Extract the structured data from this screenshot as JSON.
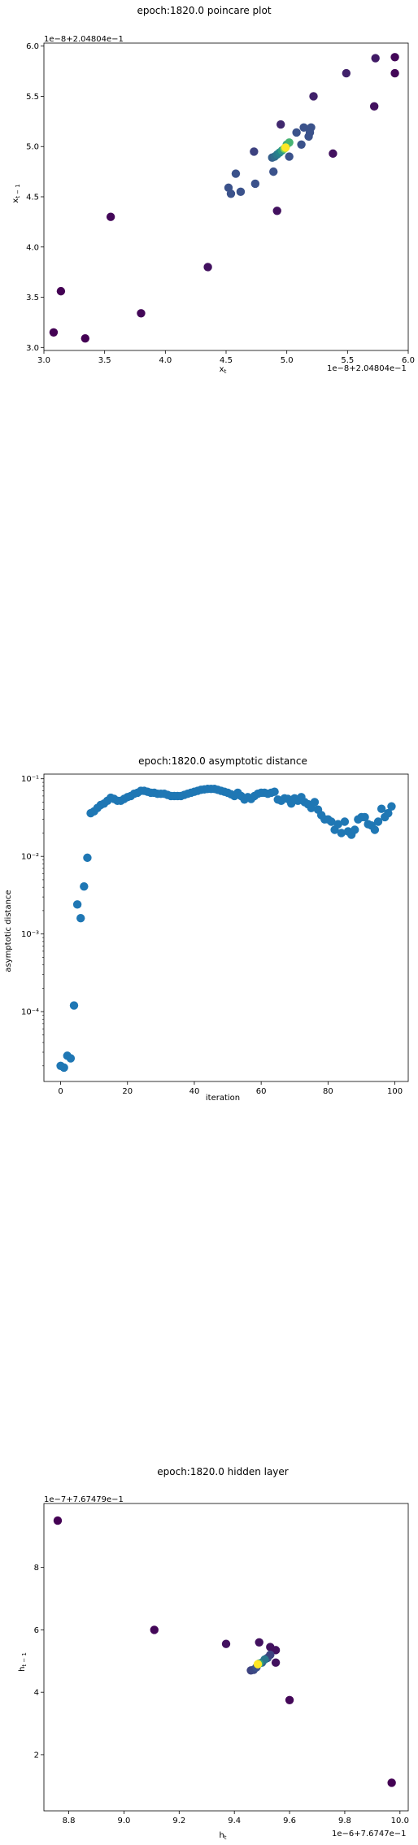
{
  "chart_data": [
    {
      "type": "scatter",
      "title": "epoch:1820.0 poincare plot",
      "xlabel": "x_t",
      "ylabel": "x_{t-1}",
      "x_offset_text": "1e−8+2.04804e−1",
      "y_offset_text": "1e−8+2.04804e−1",
      "xlim": [
        3.0,
        6.0
      ],
      "ylim": [
        2.97,
        6.03
      ],
      "xticks": [
        3.0,
        3.5,
        4.0,
        4.5,
        5.0,
        5.5,
        6.0
      ],
      "xtick_labels": [
        "3.0",
        "3.5",
        "4.0",
        "4.5",
        "5.0",
        "5.5",
        "6.0"
      ],
      "yticks": [
        3.0,
        3.5,
        4.0,
        4.5,
        5.0,
        5.5,
        6.0
      ],
      "ytick_labels": [
        "3.0",
        "3.5",
        "4.0",
        "4.5",
        "5.0",
        "5.5",
        "6.0"
      ],
      "colormap": "viridis",
      "points": [
        {
          "x": 3.08,
          "y": 3.15,
          "c": 0.0
        },
        {
          "x": 3.14,
          "y": 3.56,
          "c": 0.0
        },
        {
          "x": 3.34,
          "y": 3.09,
          "c": 0.0
        },
        {
          "x": 3.55,
          "y": 4.3,
          "c": 0.02
        },
        {
          "x": 3.8,
          "y": 3.34,
          "c": 0.02
        },
        {
          "x": 4.35,
          "y": 3.8,
          "c": 0.05
        },
        {
          "x": 4.92,
          "y": 4.36,
          "c": 0.05
        },
        {
          "x": 5.38,
          "y": 4.93,
          "c": 0.05
        },
        {
          "x": 5.72,
          "y": 5.4,
          "c": 0.05
        },
        {
          "x": 5.89,
          "y": 5.73,
          "c": 0.02
        },
        {
          "x": 5.89,
          "y": 5.89,
          "c": 0.02
        },
        {
          "x": 5.73,
          "y": 5.88,
          "c": 0.08
        },
        {
          "x": 5.49,
          "y": 5.73,
          "c": 0.1
        },
        {
          "x": 5.22,
          "y": 5.5,
          "c": 0.1
        },
        {
          "x": 4.95,
          "y": 5.22,
          "c": 0.12
        },
        {
          "x": 4.52,
          "y": 4.59,
          "c": 0.25
        },
        {
          "x": 4.54,
          "y": 4.53,
          "c": 0.25
        },
        {
          "x": 4.62,
          "y": 4.55,
          "c": 0.25
        },
        {
          "x": 4.58,
          "y": 4.73,
          "c": 0.25
        },
        {
          "x": 4.74,
          "y": 4.63,
          "c": 0.25
        },
        {
          "x": 4.73,
          "y": 4.95,
          "c": 0.2
        },
        {
          "x": 4.89,
          "y": 4.75,
          "c": 0.25
        },
        {
          "x": 5.02,
          "y": 4.9,
          "c": 0.25
        },
        {
          "x": 5.12,
          "y": 5.02,
          "c": 0.25
        },
        {
          "x": 5.08,
          "y": 5.14,
          "c": 0.25
        },
        {
          "x": 5.14,
          "y": 5.19,
          "c": 0.25
        },
        {
          "x": 5.2,
          "y": 5.19,
          "c": 0.25
        },
        {
          "x": 5.19,
          "y": 5.14,
          "c": 0.25
        },
        {
          "x": 5.18,
          "y": 5.1,
          "c": 0.25
        },
        {
          "x": 4.88,
          "y": 4.89,
          "c": 0.3
        },
        {
          "x": 4.9,
          "y": 4.9,
          "c": 0.35
        },
        {
          "x": 4.92,
          "y": 4.92,
          "c": 0.4
        },
        {
          "x": 4.94,
          "y": 4.94,
          "c": 0.45
        },
        {
          "x": 4.96,
          "y": 4.96,
          "c": 0.55
        },
        {
          "x": 5.0,
          "y": 5.02,
          "c": 0.6
        },
        {
          "x": 5.02,
          "y": 5.04,
          "c": 0.65
        },
        {
          "x": 4.98,
          "y": 4.98,
          "c": 0.8
        },
        {
          "x": 4.99,
          "y": 4.99,
          "c": 1.0
        }
      ]
    },
    {
      "type": "scatter",
      "title": "epoch:1820.0 asymptotic distance",
      "xlabel": "iteration",
      "ylabel": "asymptotic distance",
      "yscale": "log",
      "xlim": [
        -5,
        104
      ],
      "ylim_log10": [
        -4.9,
        -0.94
      ],
      "xticks": [
        0,
        20,
        40,
        60,
        80,
        100
      ],
      "xtick_labels": [
        "0",
        "20",
        "40",
        "60",
        "80",
        "100"
      ],
      "yticks_log10": [
        -4,
        -3,
        -2,
        -1
      ],
      "ytick_labels": [
        "10⁻⁴",
        "10⁻³",
        "10⁻²",
        "10⁻¹"
      ],
      "color": "#1f77b4",
      "x": [
        0,
        1,
        2,
        3,
        4,
        5,
        6,
        7,
        8,
        9,
        10,
        11,
        12,
        13,
        14,
        15,
        16,
        17,
        18,
        19,
        20,
        21,
        22,
        23,
        24,
        25,
        26,
        27,
        28,
        29,
        30,
        31,
        32,
        33,
        34,
        35,
        36,
        37,
        38,
        39,
        40,
        41,
        42,
        43,
        44,
        45,
        46,
        47,
        48,
        49,
        50,
        51,
        52,
        53,
        54,
        55,
        56,
        57,
        58,
        59,
        60,
        61,
        62,
        63,
        64,
        65,
        66,
        67,
        68,
        69,
        70,
        71,
        72,
        73,
        74,
        75,
        76,
        77,
        78,
        79,
        80,
        81,
        82,
        83,
        84,
        85,
        86,
        87,
        88,
        89,
        90,
        91,
        92,
        93,
        94,
        95,
        96,
        97,
        98,
        99
      ],
      "y": [
        2e-05,
        1.9e-05,
        2.7e-05,
        2.5e-05,
        0.00012,
        0.0024,
        0.0016,
        0.0041,
        0.0096,
        0.036,
        0.038,
        0.042,
        0.046,
        0.048,
        0.052,
        0.057,
        0.055,
        0.052,
        0.052,
        0.055,
        0.058,
        0.06,
        0.064,
        0.066,
        0.07,
        0.07,
        0.068,
        0.066,
        0.066,
        0.064,
        0.064,
        0.064,
        0.062,
        0.06,
        0.06,
        0.06,
        0.06,
        0.062,
        0.064,
        0.066,
        0.068,
        0.07,
        0.072,
        0.073,
        0.074,
        0.074,
        0.074,
        0.072,
        0.07,
        0.068,
        0.066,
        0.063,
        0.06,
        0.066,
        0.06,
        0.054,
        0.058,
        0.055,
        0.06,
        0.064,
        0.066,
        0.066,
        0.064,
        0.066,
        0.068,
        0.054,
        0.052,
        0.056,
        0.055,
        0.048,
        0.056,
        0.052,
        0.058,
        0.05,
        0.047,
        0.042,
        0.05,
        0.04,
        0.034,
        0.03,
        0.03,
        0.028,
        0.022,
        0.026,
        0.02,
        0.028,
        0.021,
        0.019,
        0.022,
        0.03,
        0.032,
        0.032,
        0.026,
        0.025,
        0.022,
        0.028,
        0.041,
        0.032,
        0.036,
        0.044
      ]
    },
    {
      "type": "scatter",
      "title": "epoch:1820.0 hidden layer",
      "xlabel": "h_t",
      "ylabel": "h_{t-1}",
      "x_offset_text": "1e−6+7.6747e−1",
      "y_offset_text": "1e−7+7.67479e−1",
      "xlim": [
        8.71,
        10.03
      ],
      "ylim": [
        0.2,
        10.05
      ],
      "xticks": [
        8.8,
        9.0,
        9.2,
        9.4,
        9.6,
        9.8,
        10.0
      ],
      "xtick_labels": [
        "8.8",
        "9.0",
        "9.2",
        "9.4",
        "9.6",
        "9.8",
        "10.0"
      ],
      "yticks": [
        2,
        4,
        6,
        8
      ],
      "ytick_labels": [
        "2",
        "4",
        "6",
        "8"
      ],
      "colormap": "viridis",
      "points": [
        {
          "x": 8.76,
          "y": 9.5,
          "c": 0.0
        },
        {
          "x": 9.11,
          "y": 6.0,
          "c": 0.02
        },
        {
          "x": 9.37,
          "y": 5.55,
          "c": 0.05
        },
        {
          "x": 9.49,
          "y": 5.6,
          "c": 0.05
        },
        {
          "x": 9.55,
          "y": 4.95,
          "c": 0.05
        },
        {
          "x": 9.53,
          "y": 5.45,
          "c": 0.05
        },
        {
          "x": 9.55,
          "y": 5.35,
          "c": 0.05
        },
        {
          "x": 9.6,
          "y": 3.75,
          "c": 0.02
        },
        {
          "x": 9.97,
          "y": 1.1,
          "c": 0.0
        },
        {
          "x": 9.46,
          "y": 4.7,
          "c": 0.2
        },
        {
          "x": 9.47,
          "y": 4.72,
          "c": 0.22
        },
        {
          "x": 9.48,
          "y": 4.8,
          "c": 0.25
        },
        {
          "x": 9.5,
          "y": 4.95,
          "c": 0.3
        },
        {
          "x": 9.52,
          "y": 5.1,
          "c": 0.25
        },
        {
          "x": 9.53,
          "y": 5.2,
          "c": 0.2
        },
        {
          "x": 9.51,
          "y": 5.05,
          "c": 0.4
        },
        {
          "x": 9.49,
          "y": 4.92,
          "c": 0.6
        },
        {
          "x": 9.485,
          "y": 4.9,
          "c": 1.0
        }
      ]
    }
  ]
}
